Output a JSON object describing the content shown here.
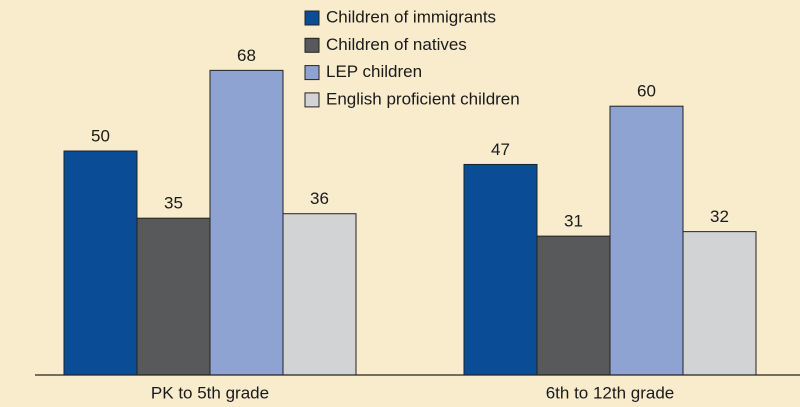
{
  "chart_data": {
    "type": "bar",
    "categories": [
      "PK to 5th grade",
      "6th to 12th grade"
    ],
    "series": [
      {
        "name": "Children of immigrants",
        "color": "#0a4c96",
        "values": [
          50,
          47
        ]
      },
      {
        "name": "Children of natives",
        "color": "#58595b",
        "values": [
          35,
          31
        ]
      },
      {
        "name": "LEP children",
        "color": "#8fa3d2",
        "values": [
          68,
          60
        ]
      },
      {
        "name": "English proficient children",
        "color": "#d1d3d5",
        "values": [
          36,
          32
        ]
      }
    ],
    "ylim": [
      0,
      80
    ],
    "legend": "top"
  }
}
